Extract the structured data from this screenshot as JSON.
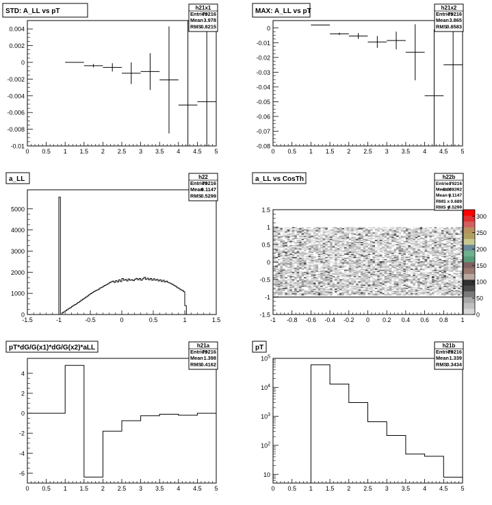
{
  "canvas": {
    "background": "#ffffff",
    "line_color": "#000000"
  },
  "chart_data": [
    {
      "id": "h21x1",
      "type": "errorbar",
      "title": "STD: A_LL vs pT",
      "stats": {
        "name": "h21x1",
        "rows": [
          [
            "Entries",
            "79216"
          ],
          [
            "Mean",
            "3.978"
          ],
          [
            "RMS",
            "0.8215"
          ]
        ]
      },
      "xlim": [
        0,
        5
      ],
      "ylim": [
        -0.01,
        0.005
      ],
      "xticks": [
        "0",
        "0.5",
        "1",
        "1.5",
        "2",
        "2.5",
        "3",
        "3.5",
        "4",
        "4.5",
        "5"
      ],
      "yticks": [
        "-0.01",
        "-0.008",
        "-0.006",
        "-0.004",
        "-0.002",
        "0",
        "0.002",
        "0.004"
      ],
      "points": [
        {
          "x": 1.25,
          "xerr": 0.25,
          "y": 0.0,
          "yerr": 2e-05
        },
        {
          "x": 1.75,
          "xerr": 0.25,
          "y": -0.0004,
          "yerr": 0.0002
        },
        {
          "x": 2.25,
          "xerr": 0.25,
          "y": -0.0006,
          "yerr": 0.0005
        },
        {
          "x": 2.75,
          "xerr": 0.25,
          "y": -0.0013,
          "yerr": 0.0013
        },
        {
          "x": 3.25,
          "xerr": 0.25,
          "y": -0.0011,
          "yerr": 0.0022
        },
        {
          "x": 3.75,
          "xerr": 0.25,
          "y": -0.0021,
          "yerr": 0.0064
        },
        {
          "x": 4.25,
          "xerr": 0.25,
          "y": -0.0051,
          "yerr": 0.012
        },
        {
          "x": 4.75,
          "xerr": 0.25,
          "y": -0.0047,
          "yerr": 0.012
        }
      ]
    },
    {
      "id": "h21x2",
      "type": "errorbar",
      "title": "MAX: A_LL vs pT",
      "stats": {
        "name": "h21x2",
        "rows": [
          [
            "Entries",
            "79216"
          ],
          [
            "Mean",
            "3.865"
          ],
          [
            "RMS",
            "0.8583"
          ]
        ]
      },
      "xlim": [
        0,
        5
      ],
      "ylim": [
        -0.08,
        0.005
      ],
      "xticks": [
        "0",
        "0.5",
        "1",
        "1.5",
        "2",
        "2.5",
        "3",
        "3.5",
        "4",
        "4.5",
        "5"
      ],
      "yticks": [
        "-0.08",
        "-0.07",
        "-0.06",
        "-0.05",
        "-0.04",
        "-0.03",
        "-0.02",
        "-0.01",
        "0"
      ],
      "points": [
        {
          "x": 1.25,
          "xerr": 0.25,
          "y": 0.002,
          "yerr": 0.0002
        },
        {
          "x": 1.75,
          "xerr": 0.25,
          "y": -0.004,
          "yerr": 0.0008
        },
        {
          "x": 2.25,
          "xerr": 0.25,
          "y": -0.0055,
          "yerr": 0.002
        },
        {
          "x": 2.75,
          "xerr": 0.25,
          "y": -0.0095,
          "yerr": 0.004
        },
        {
          "x": 3.25,
          "xerr": 0.25,
          "y": -0.0085,
          "yerr": 0.006
        },
        {
          "x": 3.75,
          "xerr": 0.25,
          "y": -0.0165,
          "yerr": 0.019
        },
        {
          "x": 4.25,
          "xerr": 0.25,
          "y": -0.046,
          "yerr": 0.045
        },
        {
          "x": 4.75,
          "xerr": 0.25,
          "y": -0.025,
          "yerr": 0.06
        }
      ]
    },
    {
      "id": "h22",
      "type": "histogram",
      "title": "a_LL",
      "stats": {
        "name": "h22",
        "rows": [
          [
            "Entries",
            "79216"
          ],
          [
            "Mean",
            "0.1147"
          ],
          [
            "RMS",
            "0.5299"
          ]
        ]
      },
      "xlim": [
        -1.5,
        1.5
      ],
      "ylim": [
        0,
        5900
      ],
      "xticks": [
        "-1.5",
        "-1",
        "-0.5",
        "0",
        "0.5",
        "1",
        "1.5"
      ],
      "yticks": [
        "0",
        "1000",
        "2000",
        "3000",
        "4000",
        "5000"
      ],
      "bin_width": 0.025,
      "bins": [
        {
          "x": -1.0,
          "y": 5550
        },
        {
          "x": -0.95,
          "y": 80
        },
        {
          "x": -0.925,
          "y": 130
        },
        {
          "x": -0.9,
          "y": 180
        },
        {
          "x": -0.875,
          "y": 230
        },
        {
          "x": -0.85,
          "y": 280
        },
        {
          "x": -0.825,
          "y": 330
        },
        {
          "x": -0.8,
          "y": 380
        },
        {
          "x": -0.775,
          "y": 430
        },
        {
          "x": -0.75,
          "y": 470
        },
        {
          "x": -0.725,
          "y": 520
        },
        {
          "x": -0.7,
          "y": 570
        },
        {
          "x": -0.675,
          "y": 620
        },
        {
          "x": -0.65,
          "y": 680
        },
        {
          "x": -0.625,
          "y": 730
        },
        {
          "x": -0.6,
          "y": 780
        },
        {
          "x": -0.575,
          "y": 830
        },
        {
          "x": -0.55,
          "y": 880
        },
        {
          "x": -0.525,
          "y": 940
        },
        {
          "x": -0.5,
          "y": 990
        },
        {
          "x": -0.475,
          "y": 1040
        },
        {
          "x": -0.45,
          "y": 1080
        },
        {
          "x": -0.425,
          "y": 1130
        },
        {
          "x": -0.4,
          "y": 1160
        },
        {
          "x": -0.375,
          "y": 1200
        },
        {
          "x": -0.35,
          "y": 1260
        },
        {
          "x": -0.325,
          "y": 1290
        },
        {
          "x": -0.3,
          "y": 1340
        },
        {
          "x": -0.275,
          "y": 1380
        },
        {
          "x": -0.25,
          "y": 1420
        },
        {
          "x": -0.225,
          "y": 1460
        },
        {
          "x": -0.2,
          "y": 1510
        },
        {
          "x": -0.175,
          "y": 1550
        },
        {
          "x": -0.15,
          "y": 1580
        },
        {
          "x": -0.125,
          "y": 1520
        },
        {
          "x": -0.1,
          "y": 1600
        },
        {
          "x": -0.075,
          "y": 1540
        },
        {
          "x": -0.05,
          "y": 1640
        },
        {
          "x": -0.025,
          "y": 1560
        },
        {
          "x": 0.0,
          "y": 1700
        },
        {
          "x": 0.025,
          "y": 1620
        },
        {
          "x": 0.05,
          "y": 1660
        },
        {
          "x": 0.075,
          "y": 1590
        },
        {
          "x": 0.1,
          "y": 1680
        },
        {
          "x": 0.125,
          "y": 1620
        },
        {
          "x": 0.15,
          "y": 1650
        },
        {
          "x": 0.175,
          "y": 1600
        },
        {
          "x": 0.2,
          "y": 1660
        },
        {
          "x": 0.225,
          "y": 1710
        },
        {
          "x": 0.25,
          "y": 1640
        },
        {
          "x": 0.275,
          "y": 1700
        },
        {
          "x": 0.3,
          "y": 1620
        },
        {
          "x": 0.325,
          "y": 1690
        },
        {
          "x": 0.35,
          "y": 1760
        },
        {
          "x": 0.375,
          "y": 1660
        },
        {
          "x": 0.4,
          "y": 1720
        },
        {
          "x": 0.425,
          "y": 1640
        },
        {
          "x": 0.45,
          "y": 1700
        },
        {
          "x": 0.475,
          "y": 1620
        },
        {
          "x": 0.5,
          "y": 1690
        },
        {
          "x": 0.525,
          "y": 1620
        },
        {
          "x": 0.55,
          "y": 1660
        },
        {
          "x": 0.575,
          "y": 1590
        },
        {
          "x": 0.6,
          "y": 1640
        },
        {
          "x": 0.625,
          "y": 1560
        },
        {
          "x": 0.65,
          "y": 1620
        },
        {
          "x": 0.675,
          "y": 1540
        },
        {
          "x": 0.7,
          "y": 1580
        },
        {
          "x": 0.725,
          "y": 1520
        },
        {
          "x": 0.75,
          "y": 1490
        },
        {
          "x": 0.775,
          "y": 1460
        },
        {
          "x": 0.8,
          "y": 1420
        },
        {
          "x": 0.825,
          "y": 1370
        },
        {
          "x": 0.85,
          "y": 1330
        },
        {
          "x": 0.875,
          "y": 1270
        },
        {
          "x": 0.9,
          "y": 1230
        },
        {
          "x": 0.925,
          "y": 1170
        },
        {
          "x": 0.95,
          "y": 1150
        },
        {
          "x": 0.975,
          "y": 1080
        },
        {
          "x": 1.0,
          "y": 420
        }
      ]
    },
    {
      "id": "h22b",
      "type": "heatmap",
      "title": "a_LL vs CosTh",
      "stats": {
        "name": "h22b",
        "rows": [
          [
            "Entries",
            "79216"
          ],
          [
            "Mean x",
            "-0.008392"
          ],
          [
            "Mean y",
            "0.1147"
          ],
          [
            "RMS x",
            "0.689"
          ],
          [
            "RMS y",
            "0.5299"
          ]
        ]
      },
      "xlim": [
        -1,
        1
      ],
      "ylim": [
        -1.5,
        1.5
      ],
      "xticks": [
        "-1",
        "-0.8",
        "-0.6",
        "-0.4",
        "-0.2",
        "0",
        "0.2",
        "0.4",
        "0.6",
        "0.8",
        "1"
      ],
      "yticks": [
        "-1.5",
        "-1",
        "-0.5",
        "0",
        "0.5",
        "1",
        "1.5"
      ],
      "y_fill": [
        -0.95,
        1.0
      ],
      "band_y": -1.0,
      "zlim": [
        0,
        320
      ],
      "zticks": [
        "0",
        "50",
        "100",
        "150",
        "200",
        "250",
        "300"
      ],
      "palette": [
        "#d8d8d8",
        "#c0c0c0",
        "#a8a8a8",
        "#7a7a7a",
        "#4a4a4a",
        "#303030",
        "#b8a8a0",
        "#9a7a70",
        "#806060",
        "#5a9a7a",
        "#70b090",
        "#6a8a9a",
        "#c8c890",
        "#b0a060",
        "#b89060",
        "#d06060",
        "#e03030",
        "#ff0000"
      ]
    },
    {
      "id": "h21a",
      "type": "histogram",
      "title": "pT*dG/G(x1)*dG/G(x2)*aLL",
      "stats": {
        "name": "h21a",
        "rows": [
          [
            "Entries",
            "79216"
          ],
          [
            "Mean",
            "1.398"
          ],
          [
            "RMS",
            "0.4162"
          ]
        ]
      },
      "xlim": [
        0,
        5
      ],
      "ylim": [
        -7,
        5.5
      ],
      "xticks": [
        "0",
        "0.5",
        "1",
        "1.5",
        "2",
        "2.5",
        "3",
        "3.5",
        "4",
        "4.5",
        "5"
      ],
      "yticks": [
        "-6",
        "-4",
        "-2",
        "0",
        "2",
        "4"
      ],
      "bin_width": 0.5,
      "bins": [
        {
          "x": 0.0,
          "y": 0
        },
        {
          "x": 0.5,
          "y": 0
        },
        {
          "x": 1.0,
          "y": 4.8
        },
        {
          "x": 1.5,
          "y": -6.4
        },
        {
          "x": 2.0,
          "y": -1.8
        },
        {
          "x": 2.5,
          "y": -0.75
        },
        {
          "x": 3.0,
          "y": -0.25
        },
        {
          "x": 3.5,
          "y": -0.1
        },
        {
          "x": 4.0,
          "y": -0.2
        },
        {
          "x": 4.5,
          "y": 0.0
        }
      ]
    },
    {
      "id": "h21b",
      "type": "histogram",
      "title": "pT",
      "log_y": true,
      "stats": {
        "name": "h21b",
        "rows": [
          [
            "Entries",
            "79216"
          ],
          [
            "Mean",
            "1.339"
          ],
          [
            "RMS",
            "0.3434"
          ]
        ]
      },
      "xlim": [
        0,
        5
      ],
      "ylim": [
        5,
        100000
      ],
      "xticks": [
        "0",
        "0.5",
        "1",
        "1.5",
        "2",
        "2.5",
        "3",
        "3.5",
        "4",
        "4.5",
        "5"
      ],
      "yticks": [
        {
          "base": "10",
          "exp": "",
          "value": 10
        },
        {
          "base": "10",
          "exp": "2",
          "value": 100
        },
        {
          "base": "10",
          "exp": "3",
          "value": 1000
        },
        {
          "base": "10",
          "exp": "4",
          "value": 10000
        },
        {
          "base": "10",
          "exp": "5",
          "value": 100000
        }
      ],
      "bin_width": 0.5,
      "bins": [
        {
          "x": 1.0,
          "y": 60000
        },
        {
          "x": 1.5,
          "y": 13000
        },
        {
          "x": 2.0,
          "y": 3000
        },
        {
          "x": 2.5,
          "y": 650
        },
        {
          "x": 3.0,
          "y": 220
        },
        {
          "x": 3.5,
          "y": 50
        },
        {
          "x": 4.0,
          "y": 42
        },
        {
          "x": 4.5,
          "y": 8
        }
      ]
    }
  ]
}
